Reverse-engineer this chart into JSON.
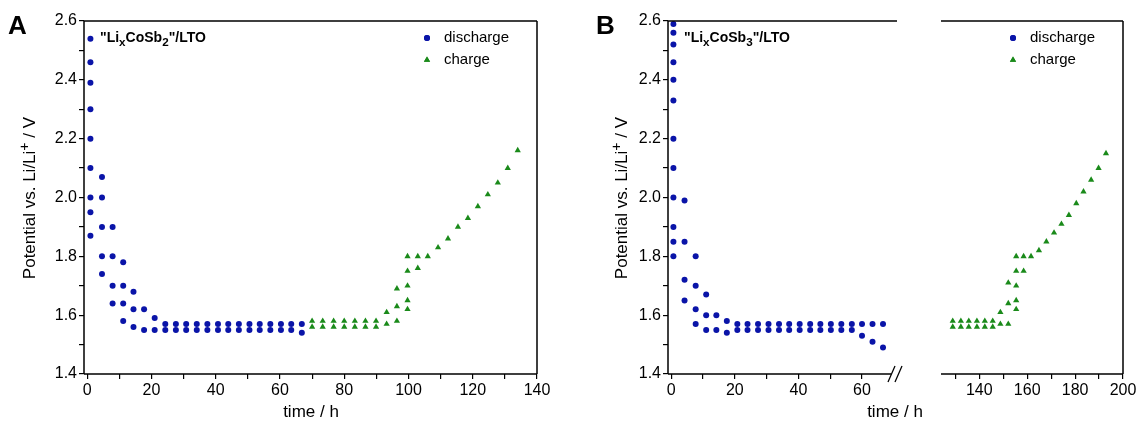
{
  "chart_data": [
    {
      "type": "scatter",
      "title": "A",
      "xlabel": "time / h",
      "ylabel": "Potential vs. Li/Li$^{+}$ / V",
      "annotations": [
        "\"Li$_{x}$CoSb$_{2}$\"/LTO"
      ],
      "legend": "top right",
      "grid": false,
      "xlim": [
        -1,
        140
      ],
      "xticks": [
        0,
        {
          "value": 10,
          "label": null
        },
        20,
        {
          "value": 30,
          "label": null
        },
        40,
        {
          "value": 50,
          "label": null
        },
        60,
        {
          "value": 70,
          "label": null
        },
        80,
        {
          "value": 90,
          "label": null
        },
        100,
        {
          "value": 110,
          "label": null
        },
        120,
        {
          "value": 130,
          "label": null
        },
        140
      ],
      "ylim": [
        1.4,
        2.6
      ],
      "yticks": [
        1.4,
        {
          "value": 1.5,
          "label": null
        },
        1.6,
        {
          "value": 1.7,
          "label": null
        },
        1.8,
        {
          "value": 1.9,
          "label": null
        },
        {
          "value": 2,
          "label": "2.0"
        },
        {
          "value": 2.1,
          "label": null
        },
        2.2,
        {
          "value": 2.3,
          "label": null
        },
        2.4,
        {
          "value": 2.5,
          "label": null
        },
        2.6
      ],
      "series": [
        {
          "name": "discharge",
          "color": "#0a14a8",
          "marker": "circle",
          "x": [
            1,
            1,
            1,
            1,
            1,
            1,
            1,
            1,
            1,
            4.6,
            4.6,
            4.6,
            4.6,
            4.6,
            7.9,
            7.9,
            7.9,
            7.9,
            11.2,
            11.2,
            11.2,
            11.2,
            14.4,
            14.4,
            14.4,
            17.7,
            17.7,
            21,
            21,
            24.3,
            24.3,
            27.6,
            27.6,
            30.8,
            30.8,
            34.1,
            34.1,
            37.4,
            37.4,
            40.7,
            40.7,
            43.9,
            43.9,
            47.2,
            47.2,
            50.5,
            50.5,
            53.7,
            53.7,
            57,
            57,
            60.3,
            60.3,
            63.5,
            63.5,
            66.8,
            66.8
          ],
          "values": [
            2.54,
            2.46,
            2.39,
            2.3,
            2.2,
            2.1,
            2,
            1.95,
            1.87,
            2.07,
            2,
            1.9,
            1.8,
            1.74,
            1.9,
            1.8,
            1.7,
            1.64,
            1.78,
            1.7,
            1.64,
            1.58,
            1.68,
            1.62,
            1.56,
            1.62,
            1.55,
            1.59,
            1.55,
            1.57,
            1.55,
            1.57,
            1.55,
            1.57,
            1.55,
            1.57,
            1.55,
            1.57,
            1.55,
            1.57,
            1.55,
            1.57,
            1.55,
            1.57,
            1.55,
            1.57,
            1.55,
            1.57,
            1.55,
            1.57,
            1.55,
            1.57,
            1.55,
            1.57,
            1.55,
            1.57,
            1.54
          ]
        },
        {
          "name": "charge",
          "color": "#1a8a1a",
          "marker": "triangle",
          "x": [
            70,
            70,
            73.3,
            73.3,
            76.7,
            76.7,
            80,
            80,
            83.3,
            83.3,
            86.6,
            86.6,
            89.9,
            89.9,
            93.2,
            93.2,
            96.4,
            96.4,
            96.4,
            99.7,
            99.7,
            99.7,
            99.7,
            99.7,
            102.9,
            102.9,
            106,
            109.2,
            112.3,
            115.4,
            118.5,
            121.6,
            124.7,
            127.8,
            130.9,
            134
          ],
          "values": [
            1.58,
            1.56,
            1.58,
            1.56,
            1.58,
            1.56,
            1.58,
            1.56,
            1.58,
            1.56,
            1.58,
            1.56,
            1.58,
            1.56,
            1.61,
            1.57,
            1.69,
            1.63,
            1.58,
            1.8,
            1.75,
            1.7,
            1.65,
            1.62,
            1.8,
            1.76,
            1.8,
            1.83,
            1.86,
            1.9,
            1.93,
            1.97,
            2.01,
            2.05,
            2.1,
            2.16
          ]
        }
      ]
    },
    {
      "type": "scatter",
      "title": "B",
      "xlabel": "time / h",
      "ylabel": "Potential vs. Li/Li$^{+}$ / V",
      "annotations": [
        "\"Li$_{x}$CoSb$_{3}$\"/LTO"
      ],
      "legend": "top right",
      "grid": false,
      "xlim": [
        -1,
        71
      ],
      "xticks": [
        0,
        {
          "value": 10,
          "label": null
        },
        20,
        {
          "value": 30,
          "label": null
        },
        40,
        {
          "value": 50,
          "label": null
        },
        60
      ],
      "ylim": [
        1.4,
        2.6
      ],
      "yticks": [
        1.4,
        {
          "value": 1.5,
          "label": null
        },
        1.6,
        {
          "value": 1.7,
          "label": null
        },
        1.8,
        {
          "value": 1.9,
          "label": null
        },
        {
          "value": 2,
          "label": "2.0"
        },
        {
          "value": 2.1,
          "label": null
        },
        2.2,
        {
          "value": 2.3,
          "label": null
        },
        2.4,
        {
          "value": 2.5,
          "label": null
        },
        2.6
      ],
      "series": [
        {
          "name": "discharge",
          "color": "#0a14a8",
          "marker": "circle",
          "x": [
            0.7,
            0.7,
            0.7,
            0.7,
            0.7,
            0.7,
            0.7,
            0.7,
            0.7,
            0.7,
            0.7,
            0.7,
            4.2,
            4.2,
            4.2,
            4.2,
            7.7,
            7.7,
            7.7,
            7.7,
            11,
            11,
            11,
            14.2,
            14.2,
            17.5,
            17.5,
            20.8,
            20.8,
            24,
            24,
            27.3,
            27.3,
            30.6,
            30.6,
            33.9,
            33.9,
            37.1,
            37.1,
            40.4,
            40.4,
            43.7,
            43.7,
            46.9,
            46.9,
            50.2,
            50.2,
            53.5,
            53.5,
            56.8,
            56.8,
            60,
            60,
            63.3,
            63.3,
            66.6,
            66.6
          ],
          "values": [
            2.59,
            2.56,
            2.52,
            2.46,
            2.4,
            2.33,
            2.2,
            2.1,
            2,
            1.9,
            1.85,
            1.8,
            1.99,
            1.85,
            1.72,
            1.65,
            1.8,
            1.7,
            1.62,
            1.57,
            1.67,
            1.6,
            1.55,
            1.6,
            1.55,
            1.58,
            1.54,
            1.57,
            1.55,
            1.57,
            1.55,
            1.57,
            1.55,
            1.57,
            1.55,
            1.57,
            1.55,
            1.57,
            1.55,
            1.57,
            1.55,
            1.57,
            1.55,
            1.57,
            1.55,
            1.57,
            1.55,
            1.57,
            1.55,
            1.57,
            1.55,
            1.57,
            1.53,
            1.57,
            1.51,
            1.57,
            1.49
          ]
        }
      ]
    },
    {
      "type": "scatter",
      "legend": "top right",
      "grid": false,
      "tick_labels": "x",
      "xlim": [
        124,
        200
      ],
      "xticks": [
        {
          "value": 130,
          "label": null
        },
        140,
        {
          "value": 150,
          "label": null
        },
        160,
        {
          "value": 170,
          "label": null
        },
        180,
        {
          "value": 190,
          "label": null
        },
        200
      ],
      "ylim": [
        1.4,
        2.6
      ],
      "series": [
        {
          "name": "charge",
          "color": "#1a8a1a",
          "marker": "triangle",
          "x": [
            128.9,
            128.9,
            132.3,
            132.3,
            135.6,
            135.6,
            139,
            139,
            142.3,
            142.3,
            145.6,
            145.6,
            148.8,
            148.8,
            152.1,
            152.1,
            152.1,
            155.4,
            155.4,
            155.4,
            155.4,
            155.4,
            158.5,
            158.5,
            161.6,
            164.9,
            168,
            171.2,
            174.3,
            177.4,
            180.5,
            183.5,
            186.7,
            189.8,
            192.9
          ],
          "values": [
            1.58,
            1.56,
            1.58,
            1.56,
            1.58,
            1.56,
            1.58,
            1.56,
            1.58,
            1.56,
            1.58,
            1.56,
            1.61,
            1.57,
            1.71,
            1.64,
            1.57,
            1.8,
            1.75,
            1.7,
            1.65,
            1.62,
            1.8,
            1.75,
            1.8,
            1.82,
            1.85,
            1.88,
            1.91,
            1.94,
            1.98,
            2.02,
            2.06,
            2.1,
            2.15
          ]
        }
      ]
    }
  ]
}
